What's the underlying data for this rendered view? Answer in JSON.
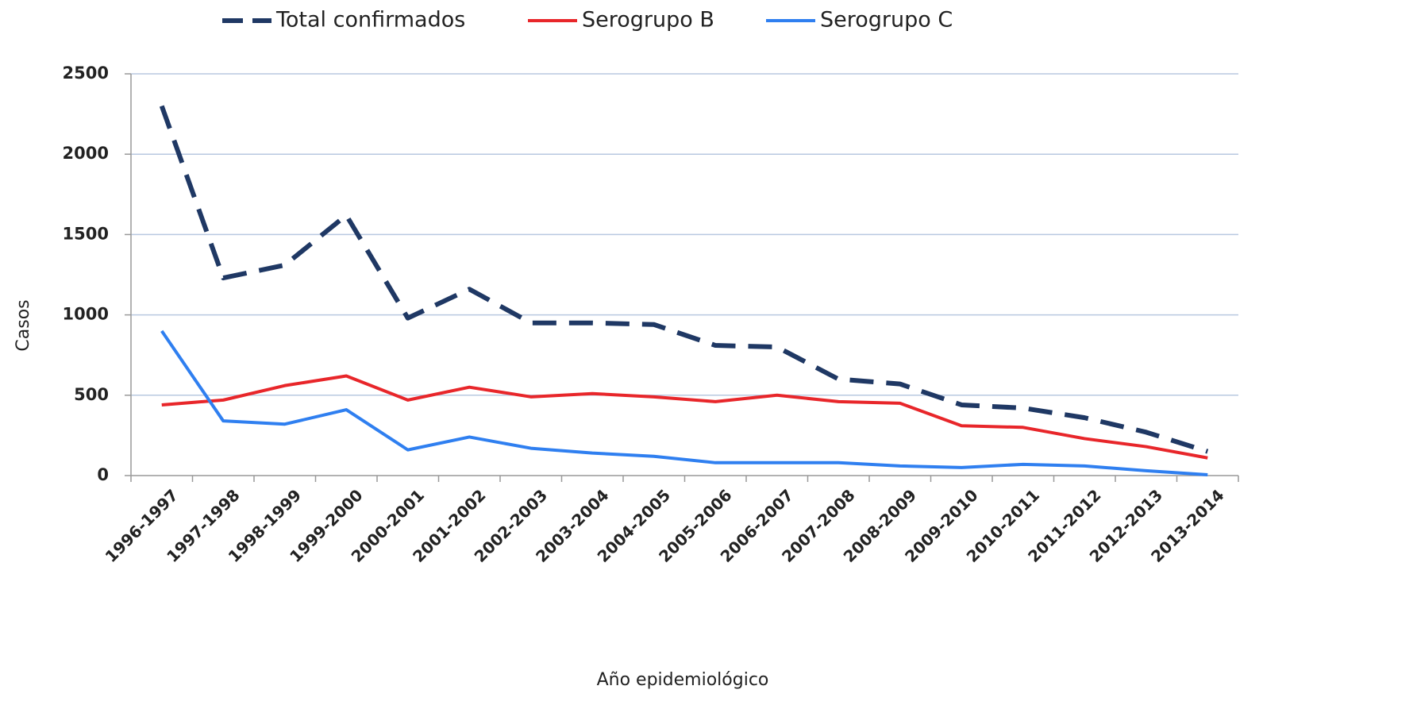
{
  "chart_data": {
    "type": "line",
    "x_label": "Año epidemiológico",
    "y_label": "Casos",
    "categories": [
      "1996-1997",
      "1997-1998",
      "1998-1999",
      "1999-2000",
      "2000-2001",
      "2001-2002",
      "2002-2003",
      "2003-2004",
      "2004-2005",
      "2005-2006",
      "2006-2007",
      "2007-2008",
      "2008-2009",
      "2009-2010",
      "2010-2011",
      "2011-2012",
      "2012-2013",
      "2013-2014"
    ],
    "series": [
      {
        "name": "Total confirmados",
        "color": "#1f3864",
        "dashed": true,
        "values": [
          2300,
          1230,
          1310,
          1620,
          980,
          1160,
          950,
          950,
          940,
          810,
          800,
          600,
          570,
          440,
          420,
          360,
          270,
          150
        ]
      },
      {
        "name": "Serogrupo B",
        "color": "#e8262a",
        "dashed": false,
        "values": [
          440,
          470,
          560,
          620,
          470,
          550,
          490,
          510,
          490,
          460,
          500,
          460,
          450,
          310,
          300,
          230,
          180,
          110
        ]
      },
      {
        "name": "Serogrupo C",
        "color": "#2f7ff0",
        "dashed": false,
        "values": [
          900,
          340,
          320,
          410,
          160,
          240,
          170,
          140,
          120,
          80,
          80,
          80,
          60,
          50,
          70,
          60,
          30,
          5
        ]
      }
    ],
    "ylim": [
      0,
      2500
    ],
    "yticks": [
      0,
      500,
      1000,
      1500,
      2000,
      2500
    ],
    "grid": true,
    "legend": "top"
  }
}
